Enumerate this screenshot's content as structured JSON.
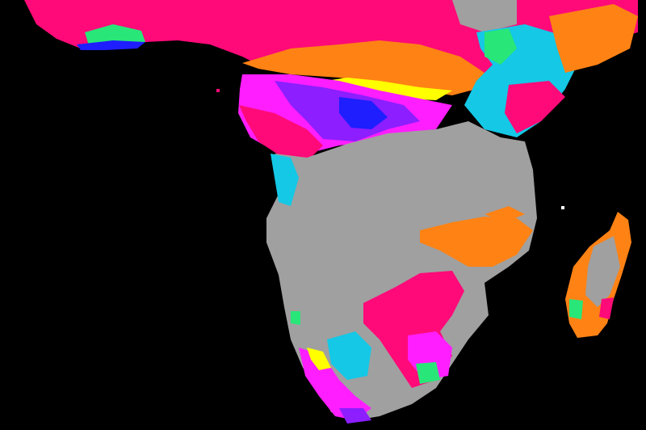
{
  "map": {
    "background_color": "#000000",
    "region_colors": {
      "gray": "#a0a0a0",
      "hot_pink": "#ff0a78",
      "magenta": "#ff1eff",
      "orange": "#ff8214",
      "yellow": "#ffff00",
      "cyan": "#14c8e6",
      "green": "#28e678",
      "violet": "#8c1eff",
      "blue": "#1e1eff",
      "white": "#ffffff"
    }
  }
}
